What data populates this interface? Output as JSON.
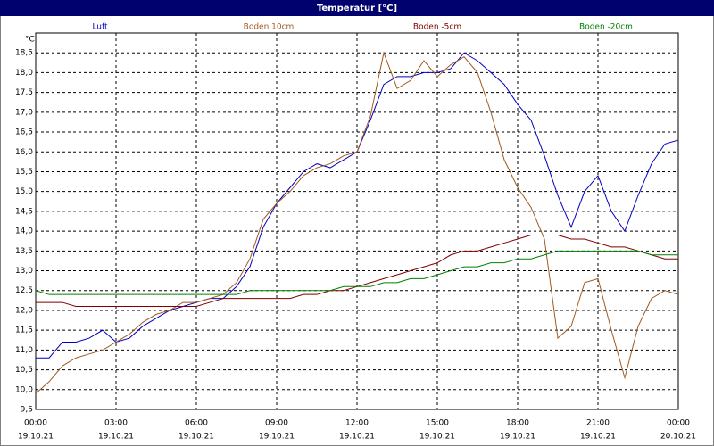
{
  "chart_data": {
    "type": "line",
    "title": "Temperatur [°C]",
    "y_unit": "°C",
    "x": [
      0,
      0.5,
      1,
      1.5,
      2,
      2.5,
      3,
      3.5,
      4,
      4.5,
      5,
      5.5,
      6,
      6.5,
      7,
      7.5,
      8,
      8.5,
      9,
      9.5,
      10,
      10.5,
      11,
      11.5,
      12,
      12.5,
      13,
      13.5,
      14,
      14.5,
      15,
      15.5,
      16,
      16.5,
      17,
      17.5,
      18,
      18.5,
      19,
      19.5,
      20,
      20.5,
      21,
      21.5,
      22,
      22.5,
      23,
      23.5,
      24
    ],
    "series": [
      {
        "name": "Luft",
        "color": "#0000c0",
        "values": [
          10.8,
          10.8,
          11.2,
          11.2,
          11.3,
          11.5,
          11.2,
          11.3,
          11.6,
          11.8,
          12.0,
          12.1,
          12.2,
          12.3,
          12.3,
          12.6,
          13.1,
          14.1,
          14.7,
          15.1,
          15.5,
          15.7,
          15.6,
          15.8,
          16.0,
          16.8,
          17.7,
          17.9,
          17.9,
          18.0,
          18.0,
          18.1,
          18.5,
          18.3,
          18.0,
          17.7,
          17.2,
          16.8,
          15.9,
          14.9,
          14.1,
          15.0,
          15.4,
          14.5,
          14.0,
          14.9,
          15.7,
          16.2,
          16.3
        ]
      },
      {
        "name": "Boden 10cm",
        "color": "#a05a20",
        "values": [
          9.9,
          10.2,
          10.6,
          10.8,
          10.9,
          11.0,
          11.2,
          11.4,
          11.7,
          11.9,
          12.0,
          12.2,
          12.2,
          12.3,
          12.4,
          12.7,
          13.3,
          14.3,
          14.7,
          15.0,
          15.4,
          15.6,
          15.7,
          15.9,
          16.0,
          16.9,
          18.5,
          17.6,
          17.8,
          18.3,
          17.9,
          18.2,
          18.4,
          18.0,
          17.0,
          15.8,
          15.1,
          14.6,
          13.8,
          11.3,
          11.6,
          12.7,
          12.8,
          11.5,
          10.3,
          11.6,
          12.3,
          12.5,
          12.4
        ]
      },
      {
        "name": "Boden -5cm",
        "color": "#800000",
        "values": [
          12.2,
          12.2,
          12.2,
          12.1,
          12.1,
          12.1,
          12.1,
          12.1,
          12.1,
          12.1,
          12.1,
          12.1,
          12.1,
          12.2,
          12.3,
          12.3,
          12.3,
          12.3,
          12.3,
          12.3,
          12.4,
          12.4,
          12.5,
          12.5,
          12.6,
          12.7,
          12.8,
          12.9,
          13.0,
          13.1,
          13.2,
          13.4,
          13.5,
          13.5,
          13.6,
          13.7,
          13.8,
          13.9,
          13.9,
          13.9,
          13.8,
          13.8,
          13.7,
          13.6,
          13.6,
          13.5,
          13.4,
          13.3,
          13.3
        ]
      },
      {
        "name": "Boden -20cm",
        "color": "#008000",
        "values": [
          12.5,
          12.4,
          12.4,
          12.4,
          12.4,
          12.4,
          12.4,
          12.4,
          12.4,
          12.4,
          12.4,
          12.4,
          12.4,
          12.4,
          12.4,
          12.4,
          12.5,
          12.5,
          12.5,
          12.5,
          12.5,
          12.5,
          12.5,
          12.6,
          12.6,
          12.6,
          12.7,
          12.7,
          12.8,
          12.8,
          12.9,
          13.0,
          13.1,
          13.1,
          13.2,
          13.2,
          13.3,
          13.3,
          13.4,
          13.5,
          13.5,
          13.5,
          13.5,
          13.5,
          13.5,
          13.5,
          13.4,
          13.4,
          13.4
        ]
      }
    ],
    "xlim": [
      0,
      24
    ],
    "xticks": [
      {
        "value": 0,
        "label": "00:00"
      },
      {
        "value": 3,
        "label": "03:00"
      },
      {
        "value": 6,
        "label": "06:00"
      },
      {
        "value": 9,
        "label": "09:00"
      },
      {
        "value": 12,
        "label": "12:00"
      },
      {
        "value": 15,
        "label": "15:00"
      },
      {
        "value": 18,
        "label": "18:00"
      },
      {
        "value": 21,
        "label": "21:00"
      },
      {
        "value": 24,
        "label": "00:00"
      }
    ],
    "xtick_dates": [
      "19.10.21",
      "19.10.21",
      "19.10.21",
      "19.10.21",
      "19.10.21",
      "19.10.21",
      "19.10.21",
      "19.10.21",
      "20.10.21"
    ],
    "ylim": [
      9.5,
      19.0
    ],
    "yticks": [
      {
        "value": 9.5,
        "label": "9,5"
      },
      {
        "value": 10,
        "label": "10,0"
      },
      {
        "value": 10.5,
        "label": "10,5"
      },
      {
        "value": 11,
        "label": "11,0"
      },
      {
        "value": 11.5,
        "label": "11,5"
      },
      {
        "value": 12,
        "label": "12,0"
      },
      {
        "value": 12.5,
        "label": "12,5"
      },
      {
        "value": 13,
        "label": "13,0"
      },
      {
        "value": 13.5,
        "label": "13,5"
      },
      {
        "value": 14,
        "label": "14,0"
      },
      {
        "value": 14.5,
        "label": "14,5"
      },
      {
        "value": 15,
        "label": "15,0"
      },
      {
        "value": 15.5,
        "label": "15,5"
      },
      {
        "value": 16,
        "label": "16,0"
      },
      {
        "value": 16.5,
        "label": "16,5"
      },
      {
        "value": 17,
        "label": "17,0"
      },
      {
        "value": 17.5,
        "label": "17,5"
      },
      {
        "value": 18,
        "label": "18,0"
      },
      {
        "value": 18.5,
        "label": "18,5"
      }
    ],
    "grid": true
  }
}
